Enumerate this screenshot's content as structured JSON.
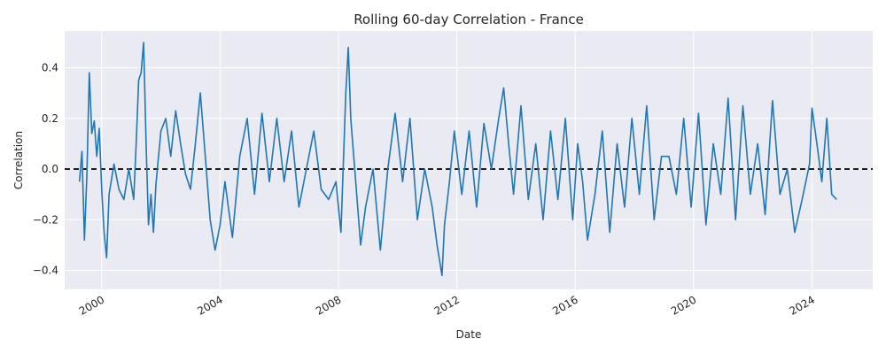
{
  "chart_data": {
    "type": "line",
    "title": "Rolling 60-day Correlation - France",
    "xlabel": "Date",
    "ylabel": "Correlation",
    "xlim": [
      "1998-10-01",
      "2026-01-20"
    ],
    "ylim": [
      -0.475,
      0.545
    ],
    "x_ticks": [
      "2000",
      "2004",
      "2008",
      "2012",
      "2016",
      "2020",
      "2024"
    ],
    "y_ticks": [
      "−0.4",
      "−0.2",
      "0.0",
      "0.2",
      "0.4"
    ],
    "y_tick_values": [
      -0.4,
      -0.2,
      0.0,
      0.2,
      0.4
    ],
    "grid": true,
    "reference_line": {
      "y": 0.0,
      "style": "dashed",
      "color": "#000000"
    },
    "colors": {
      "line": "#1f77b4",
      "background": "#eaeaf2",
      "grid": "#ffffff"
    },
    "series": [
      {
        "x": [
          "1999-04",
          "1999-05",
          "1999-06",
          "1999-07",
          "1999-08",
          "1999-09",
          "1999-10",
          "1999-11",
          "1999-12",
          "2000-01",
          "2000-02",
          "2000-03",
          "2000-04",
          "2000-06",
          "2000-08",
          "2000-10",
          "2000-12",
          "2001-02",
          "2001-03",
          "2001-04",
          "2001-05",
          "2001-06",
          "2001-07",
          "2001-08",
          "2001-09",
          "2001-10",
          "2001-11",
          "2002-01",
          "2002-03",
          "2002-05",
          "2002-07",
          "2002-09",
          "2002-11",
          "2003-01",
          "2003-03",
          "2003-05",
          "2003-07",
          "2003-09",
          "2003-11",
          "2004-01",
          "2004-03",
          "2004-06",
          "2004-09",
          "2004-12",
          "2005-03",
          "2005-06",
          "2005-09",
          "2005-12",
          "2006-03",
          "2006-06",
          "2006-09",
          "2006-12",
          "2007-03",
          "2007-06",
          "2007-09",
          "2007-12",
          "2008-02",
          "2008-04",
          "2008-05",
          "2008-06",
          "2008-08",
          "2008-10",
          "2008-12",
          "2009-03",
          "2009-06",
          "2009-09",
          "2009-12",
          "2010-03",
          "2010-06",
          "2010-09",
          "2010-12",
          "2011-03",
          "2011-05",
          "2011-07",
          "2011-08",
          "2011-10",
          "2011-12",
          "2012-03",
          "2012-06",
          "2012-09",
          "2012-12",
          "2013-03",
          "2013-06",
          "2013-08",
          "2013-10",
          "2013-12",
          "2014-03",
          "2014-06",
          "2014-09",
          "2014-12",
          "2015-03",
          "2015-06",
          "2015-09",
          "2015-12",
          "2016-02",
          "2016-04",
          "2016-06",
          "2016-09",
          "2016-12",
          "2017-03",
          "2017-06",
          "2017-09",
          "2017-12",
          "2018-03",
          "2018-06",
          "2018-09",
          "2018-12",
          "2019-03",
          "2019-06",
          "2019-09",
          "2019-12",
          "2020-03",
          "2020-06",
          "2020-09",
          "2020-12",
          "2021-03",
          "2021-06",
          "2021-09",
          "2021-12",
          "2022-03",
          "2022-06",
          "2022-09",
          "2022-12",
          "2023-03",
          "2023-06",
          "2023-09",
          "2023-12",
          "2024-01",
          "2024-03",
          "2024-05",
          "2024-07",
          "2024-09",
          "2024-11"
        ],
        "values": [
          -0.05,
          0.07,
          -0.28,
          -0.02,
          0.38,
          0.14,
          0.19,
          0.05,
          0.16,
          -0.08,
          -0.25,
          -0.35,
          -0.1,
          0.02,
          -0.08,
          -0.12,
          0.0,
          -0.12,
          0.1,
          0.35,
          0.38,
          0.5,
          0.1,
          -0.22,
          -0.1,
          -0.25,
          -0.06,
          0.15,
          0.2,
          0.05,
          0.23,
          0.1,
          -0.02,
          -0.08,
          0.1,
          0.3,
          0.05,
          -0.2,
          -0.32,
          -0.22,
          -0.05,
          -0.27,
          0.05,
          0.2,
          -0.1,
          0.22,
          -0.05,
          0.2,
          -0.05,
          0.15,
          -0.15,
          0.0,
          0.15,
          -0.08,
          -0.12,
          -0.05,
          -0.25,
          0.3,
          0.48,
          0.2,
          -0.05,
          -0.3,
          -0.15,
          0.0,
          -0.32,
          0.0,
          0.22,
          -0.05,
          0.2,
          -0.2,
          0.0,
          -0.15,
          -0.3,
          -0.42,
          -0.22,
          -0.05,
          0.15,
          -0.1,
          0.15,
          -0.15,
          0.18,
          0.0,
          0.2,
          0.32,
          0.1,
          -0.1,
          0.25,
          -0.12,
          0.1,
          -0.2,
          0.15,
          -0.12,
          0.2,
          -0.2,
          0.1,
          -0.05,
          -0.28,
          -0.1,
          0.15,
          -0.25,
          0.1,
          -0.15,
          0.2,
          -0.1,
          0.25,
          -0.2,
          0.05,
          0.05,
          -0.1,
          0.2,
          -0.15,
          0.22,
          -0.22,
          0.1,
          -0.1,
          0.28,
          -0.2,
          0.25,
          -0.1,
          0.1,
          -0.18,
          0.27,
          -0.1,
          0.0,
          -0.25,
          -0.12,
          0.02,
          0.24,
          0.1,
          -0.05,
          0.2,
          -0.1,
          -0.12
        ]
      }
    ]
  }
}
